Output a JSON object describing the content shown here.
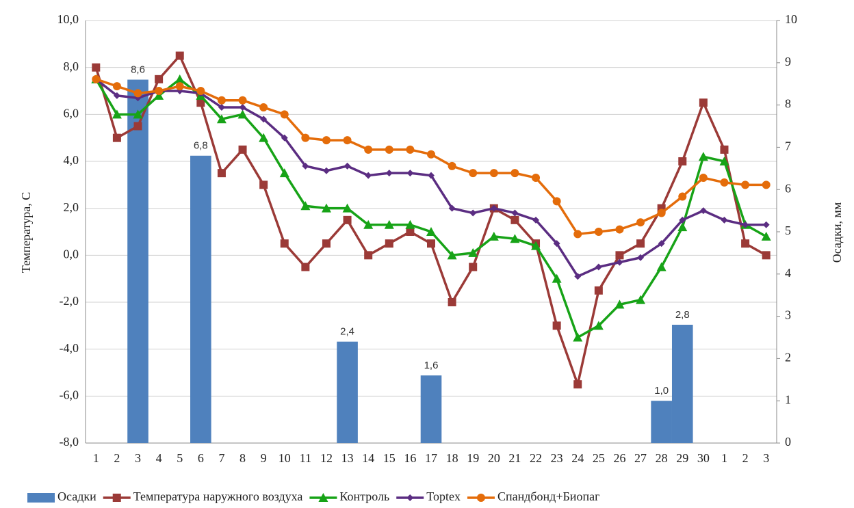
{
  "chart_data": {
    "type": "line",
    "y_label": "Температура, С",
    "y2_label": "Осадки, мм",
    "categories": [
      "1",
      "2",
      "3",
      "4",
      "5",
      "6",
      "7",
      "8",
      "9",
      "10",
      "11",
      "12",
      "13",
      "14",
      "15",
      "16",
      "17",
      "18",
      "19",
      "20",
      "21",
      "22",
      "23",
      "24",
      "25",
      "26",
      "27",
      "28",
      "29",
      "30",
      "1",
      "2",
      "3"
    ],
    "ylim": [
      -8,
      10
    ],
    "yticks": [
      {
        "value": -8,
        "label": "-8,0"
      },
      {
        "value": -6,
        "label": "-6,0"
      },
      {
        "value": -4,
        "label": "-4,0"
      },
      {
        "value": -2,
        "label": "-2,0"
      },
      {
        "value": 0,
        "label": "0,0"
      },
      {
        "value": 2,
        "label": "2,0"
      },
      {
        "value": 4,
        "label": "4,0"
      },
      {
        "value": 6,
        "label": "6,0"
      },
      {
        "value": 8,
        "label": "8,0"
      },
      {
        "value": 10,
        "label": "10,0"
      }
    ],
    "y2lim": [
      0,
      10
    ],
    "y2ticks": [
      0,
      1,
      2,
      3,
      4,
      5,
      6,
      7,
      8,
      9,
      10
    ],
    "grid": true,
    "legend": "bottom",
    "series": [
      {
        "name": "Осадки",
        "type": "bar",
        "axis": "y2",
        "color": "#4f81bd",
        "values": [
          null,
          null,
          8.6,
          null,
          null,
          6.8,
          null,
          null,
          null,
          null,
          null,
          null,
          2.4,
          null,
          null,
          null,
          1.6,
          null,
          null,
          null,
          null,
          null,
          null,
          null,
          null,
          null,
          null,
          1.0,
          2.8,
          null,
          null,
          null,
          null
        ],
        "value_labels": [
          null,
          null,
          "8,6",
          null,
          null,
          "6,8",
          null,
          null,
          null,
          null,
          null,
          null,
          "2,4",
          null,
          null,
          null,
          "1,6",
          null,
          null,
          null,
          null,
          null,
          null,
          null,
          null,
          null,
          null,
          "1,0",
          "2,8",
          null,
          null,
          null,
          null
        ]
      },
      {
        "name": "Температура наружного воздуха",
        "type": "line",
        "marker": "square",
        "color": "#9b3a37",
        "values": [
          8.0,
          5.0,
          5.5,
          7.5,
          8.5,
          6.5,
          3.5,
          4.5,
          3.0,
          0.5,
          -0.5,
          0.5,
          1.5,
          0.0,
          0.5,
          1.0,
          0.5,
          -2.0,
          -0.5,
          2.0,
          1.5,
          0.5,
          -3.0,
          -5.5,
          -1.5,
          0.0,
          0.5,
          2.0,
          4.0,
          6.5,
          4.5,
          0.5,
          0.0
        ]
      },
      {
        "name": "Контроль",
        "type": "line",
        "marker": "triangle",
        "color": "#17a317",
        "values": [
          7.5,
          6.0,
          6.0,
          6.8,
          7.5,
          6.8,
          5.8,
          6.0,
          5.0,
          3.5,
          2.1,
          2.0,
          2.0,
          1.3,
          1.3,
          1.3,
          1.0,
          0.0,
          0.1,
          0.8,
          0.7,
          0.4,
          -1.0,
          -3.5,
          -3.0,
          -2.1,
          -1.9,
          -0.5,
          1.2,
          4.2,
          4.0,
          1.3,
          0.8
        ]
      },
      {
        "name": "Toptex",
        "type": "line",
        "marker": "diamond",
        "color": "#5b2d82",
        "values": [
          7.5,
          6.8,
          6.7,
          7.0,
          7.0,
          6.9,
          6.3,
          6.3,
          5.8,
          5.0,
          3.8,
          3.6,
          3.8,
          3.4,
          3.5,
          3.5,
          3.4,
          2.0,
          1.8,
          2.0,
          1.8,
          1.5,
          0.5,
          -0.9,
          -0.5,
          -0.3,
          -0.1,
          0.5,
          1.5,
          1.9,
          1.5,
          1.3,
          1.3
        ]
      },
      {
        "name": "Спандбонд+Биопаг",
        "type": "line",
        "marker": "circle",
        "color": "#e46c0a",
        "values": [
          7.5,
          7.2,
          6.9,
          7.0,
          7.2,
          7.0,
          6.6,
          6.6,
          6.3,
          6.0,
          5.0,
          4.9,
          4.9,
          4.5,
          4.5,
          4.5,
          4.3,
          3.8,
          3.5,
          3.5,
          3.5,
          3.3,
          2.3,
          0.9,
          1.0,
          1.1,
          1.4,
          1.8,
          2.5,
          3.3,
          3.1,
          3.0,
          3.0
        ]
      }
    ]
  }
}
